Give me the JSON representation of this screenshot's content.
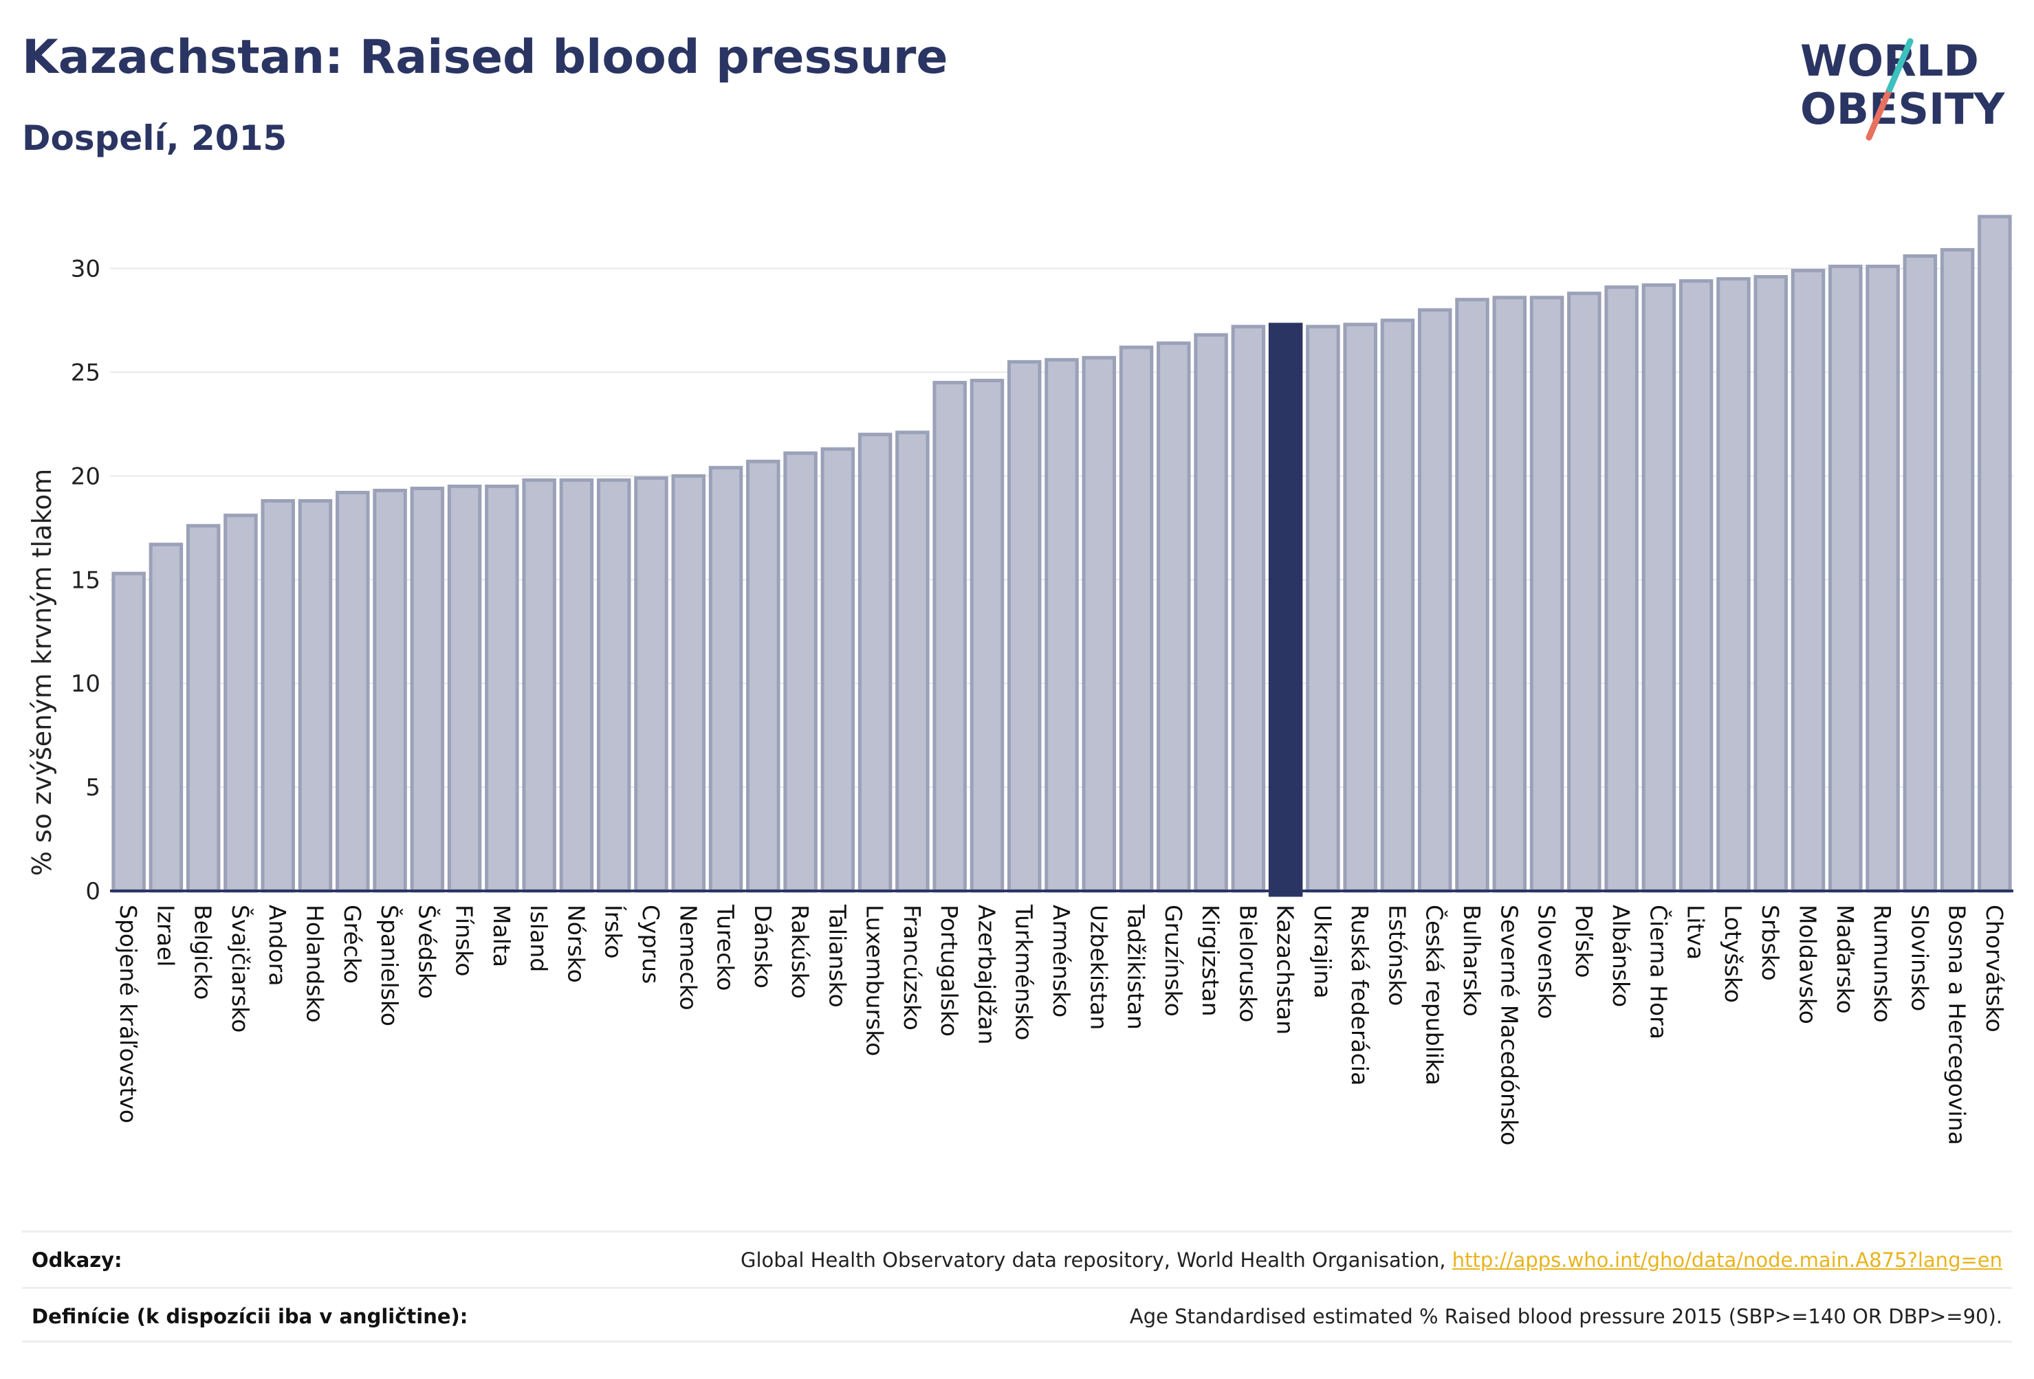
{
  "header": {
    "title": "Kazachstan: Raised blood pressure",
    "subtitle": "Dospelí, 2015"
  },
  "logo": {
    "line1": "WORLD",
    "line2": "OBESITY",
    "colors": {
      "text": "#2b3563",
      "slash_teal": "#3cc1bd",
      "slash_red": "#e8705f"
    }
  },
  "colors": {
    "bar": "#bcc0d0",
    "bar_border": "#9aa1b8",
    "highlight": "#2b3563",
    "axis": "#2b3563",
    "grid": "#e8e8e8"
  },
  "chart_data": {
    "type": "bar",
    "title": "",
    "xlabel": "",
    "ylabel": "% so zvýšeným krvným tlakom",
    "ylim": [
      0,
      33
    ],
    "yticks": [
      0,
      5,
      10,
      15,
      20,
      25,
      30
    ],
    "grid": true,
    "highlight": "Kazachstan",
    "categories": [
      "Spojené kráľovstvo",
      "Izrael",
      "Belgicko",
      "Švajčiarsko",
      "Andora",
      "Holandsko",
      "Grécko",
      "Španielsko",
      "Švédsko",
      "Fínsko",
      "Malta",
      "Island",
      "Nórsko",
      "Írsko",
      "Cyprus",
      "Nemecko",
      "Turecko",
      "Dánsko",
      "Rakúsko",
      "Taliansko",
      "Luxembursko",
      "Francúzsko",
      "Portugalsko",
      "Azerbajdžan",
      "Turkménsko",
      "Arménsko",
      "Uzbekistan",
      "Tadžikistan",
      "Gruzínsko",
      "Kirgizstan",
      "Bielorusko",
      "Kazachstan",
      "Ukrajina",
      "Ruská federácia",
      "Estónsko",
      "Česká republika",
      "Bulharsko",
      "Severné Macedónsko",
      "Slovensko",
      "Poľsko",
      "Albánsko",
      "Čierna Hora",
      "Litva",
      "Lotyšsko",
      "Srbsko",
      "Moldavsko",
      "Maďarsko",
      "Rumunsko",
      "Slovinsko",
      "Bosna a Hercegovina",
      "Chorvátsko"
    ],
    "values": [
      15.3,
      16.7,
      17.6,
      18.1,
      18.8,
      18.8,
      19.2,
      19.3,
      19.4,
      19.5,
      19.5,
      19.8,
      19.8,
      19.8,
      19.9,
      20.0,
      20.4,
      20.7,
      21.1,
      21.3,
      22.0,
      22.1,
      24.5,
      24.6,
      25.5,
      25.6,
      25.7,
      26.2,
      26.4,
      26.8,
      27.2,
      27.3,
      27.2,
      27.3,
      27.5,
      28.0,
      28.5,
      28.6,
      28.6,
      28.8,
      29.1,
      29.2,
      29.4,
      29.5,
      29.6,
      29.9,
      30.1,
      30.1,
      30.6,
      30.9,
      32.5
    ]
  },
  "footer": {
    "references_label": "Odkazy:",
    "references_text": "Global Health Observatory data repository, World Health Organisation, ",
    "references_link": "http://apps.who.int/gho/data/node.main.A875?lang=en",
    "definitions_label": "Definície (k dispozícii iba v angličtine):",
    "definitions_text": "Age Standardised estimated % Raised blood pressure 2015 (SBP>=140 OR DBP>=90)."
  }
}
